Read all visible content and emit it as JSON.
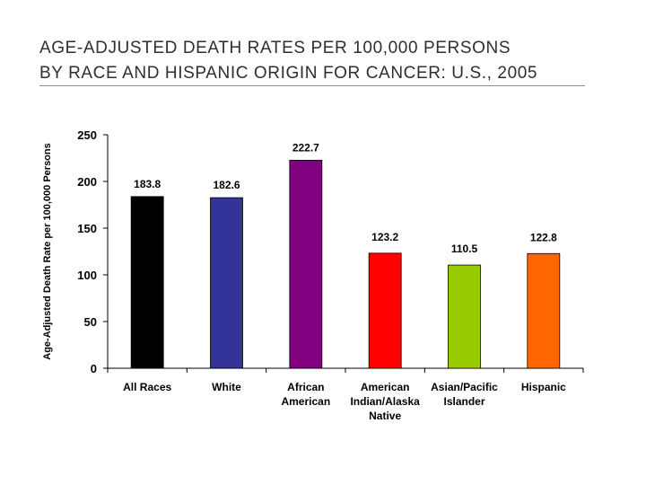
{
  "title_lines": [
    "AGE-ADJUSTED DEATH RATES PER 100,000 PERSONS",
    "BY RACE AND HISPANIC ORIGIN FOR CANCER: U.S., 2005"
  ],
  "chart_data": {
    "type": "bar",
    "title": "AGE-ADJUSTED DEATH RATES PER 100,000 PERSONS BY RACE AND HISPANIC ORIGIN FOR CANCER: U.S., 2005",
    "xlabel": "",
    "ylabel": "Age-Adjusted Death Rate per 100,000 Persons",
    "ylim": [
      0,
      250
    ],
    "yticks": [
      0,
      50,
      100,
      150,
      200,
      250
    ],
    "grid": false,
    "categories": [
      [
        "All Races"
      ],
      [
        "White"
      ],
      [
        "African",
        "American"
      ],
      [
        "American",
        "Indian/Alaska",
        "Native"
      ],
      [
        "Asian/Pacific",
        "Islander"
      ],
      [
        "Hispanic"
      ]
    ],
    "values": [
      183.8,
      182.6,
      222.7,
      123.2,
      110.5,
      122.8
    ],
    "data_labels": [
      "183.8",
      "182.6",
      "222.7",
      "123.2",
      "110.5",
      "122.8"
    ],
    "colors": [
      "#000000",
      "#333399",
      "#800080",
      "#ff0000",
      "#99cc00",
      "#ff6600"
    ]
  }
}
